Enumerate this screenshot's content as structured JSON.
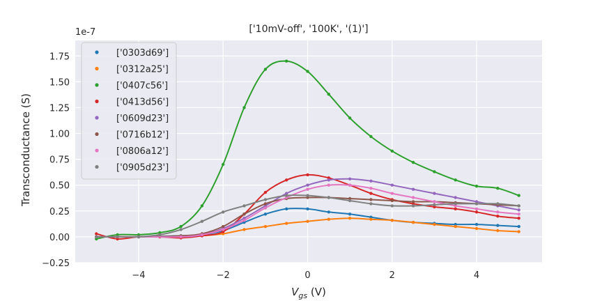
{
  "chart_data": {
    "type": "scatter",
    "title": "['10mV-off', '100K', '(1)']",
    "xlabel_main": "V",
    "xlabel_sub": "gs",
    "xlabel_unit": "(V)",
    "ylabel": "Transconductance (S)",
    "y_scale_label": "1e-7",
    "xlim": [
      -5.5,
      5.55
    ],
    "ylim": [
      -0.25,
      1.9
    ],
    "x_ticks": [
      -4,
      -2,
      0,
      2,
      4
    ],
    "x_tick_labels": [
      "−4",
      "−2",
      "0",
      "2",
      "4"
    ],
    "y_ticks": [
      -0.25,
      0.0,
      0.25,
      0.5,
      0.75,
      1.0,
      1.25,
      1.5,
      1.75
    ],
    "y_tick_labels": [
      "−0.25",
      "0.00",
      "0.25",
      "0.50",
      "0.75",
      "1.00",
      "1.25",
      "1.50",
      "1.75"
    ],
    "grid": true,
    "legend_position": "top-left",
    "series": [
      {
        "name": "['0303d69']",
        "color": "#1f77b4",
        "x": [
          -5.0,
          -4.0,
          -3.0,
          -2.5,
          -2.0,
          -1.5,
          -1.0,
          -0.5,
          0.0,
          0.5,
          1.0,
          1.5,
          2.0,
          2.5,
          3.0,
          3.5,
          4.0,
          4.5,
          5.0
        ],
        "y": [
          0.0,
          0.0,
          0.01,
          0.02,
          0.06,
          0.14,
          0.22,
          0.27,
          0.27,
          0.24,
          0.22,
          0.19,
          0.16,
          0.14,
          0.13,
          0.12,
          0.12,
          0.11,
          0.1
        ]
      },
      {
        "name": "['0312a25']",
        "color": "#ff7f0e",
        "x": [
          -5.0,
          -4.0,
          -3.0,
          -2.5,
          -2.0,
          -1.5,
          -1.0,
          -0.5,
          0.0,
          0.5,
          1.0,
          1.5,
          2.0,
          2.5,
          3.0,
          3.5,
          4.0,
          4.5,
          5.0
        ],
        "y": [
          0.0,
          0.0,
          0.0,
          0.01,
          0.03,
          0.07,
          0.1,
          0.13,
          0.15,
          0.17,
          0.18,
          0.17,
          0.16,
          0.14,
          0.12,
          0.1,
          0.08,
          0.06,
          0.05
        ]
      },
      {
        "name": "['0407c56']",
        "color": "#2ca02c",
        "x": [
          -5.0,
          -4.5,
          -4.0,
          -3.5,
          -3.0,
          -2.5,
          -2.0,
          -1.5,
          -1.0,
          -0.5,
          0.0,
          0.5,
          1.0,
          1.5,
          2.0,
          2.5,
          3.0,
          3.5,
          4.0,
          4.5,
          5.0
        ],
        "y": [
          -0.02,
          0.02,
          0.02,
          0.04,
          0.1,
          0.3,
          0.7,
          1.25,
          1.62,
          1.7,
          1.6,
          1.38,
          1.15,
          0.97,
          0.83,
          0.72,
          0.63,
          0.55,
          0.49,
          0.47,
          0.4
        ]
      },
      {
        "name": "['0413d56']",
        "color": "#d62728",
        "x": [
          -5.0,
          -4.5,
          -4.0,
          -3.5,
          -3.0,
          -2.5,
          -2.0,
          -1.5,
          -1.0,
          -0.5,
          0.0,
          0.5,
          1.0,
          1.5,
          2.0,
          2.5,
          3.0,
          3.5,
          4.0,
          4.5,
          5.0
        ],
        "y": [
          0.03,
          -0.02,
          0.0,
          0.0,
          -0.01,
          0.01,
          0.05,
          0.22,
          0.43,
          0.55,
          0.6,
          0.57,
          0.5,
          0.42,
          0.36,
          0.32,
          0.29,
          0.27,
          0.24,
          0.2,
          0.18
        ]
      },
      {
        "name": "['0609d23']",
        "color": "#9467bd",
        "x": [
          -5.0,
          -4.0,
          -3.0,
          -2.5,
          -2.0,
          -1.5,
          -1.0,
          -0.5,
          0.0,
          0.5,
          1.0,
          1.5,
          2.0,
          2.5,
          3.0,
          3.5,
          4.0,
          4.5,
          5.0
        ],
        "y": [
          0.0,
          0.0,
          0.0,
          0.02,
          0.08,
          0.18,
          0.3,
          0.42,
          0.5,
          0.55,
          0.56,
          0.54,
          0.5,
          0.46,
          0.42,
          0.38,
          0.34,
          0.3,
          0.26
        ]
      },
      {
        "name": "['0716b12']",
        "color": "#8c564b",
        "x": [
          -5.0,
          -4.0,
          -3.0,
          -2.5,
          -2.0,
          -1.5,
          -1.0,
          -0.5,
          0.0,
          0.5,
          1.0,
          1.5,
          2.0,
          2.5,
          3.0,
          3.5,
          4.0,
          4.5,
          5.0
        ],
        "y": [
          0.0,
          0.0,
          0.01,
          0.03,
          0.1,
          0.22,
          0.32,
          0.37,
          0.38,
          0.38,
          0.37,
          0.36,
          0.35,
          0.34,
          0.34,
          0.33,
          0.32,
          0.31,
          0.3
        ]
      },
      {
        "name": "['0806a12']",
        "color": "#e377c2",
        "x": [
          -5.0,
          -4.0,
          -3.0,
          -2.5,
          -2.0,
          -1.5,
          -1.0,
          -0.5,
          0.0,
          0.5,
          1.0,
          1.5,
          2.0,
          2.5,
          3.0,
          3.5,
          4.0,
          4.5,
          5.0
        ],
        "y": [
          0.0,
          0.0,
          0.0,
          0.02,
          0.07,
          0.16,
          0.28,
          0.38,
          0.46,
          0.5,
          0.5,
          0.47,
          0.42,
          0.38,
          0.34,
          0.3,
          0.27,
          0.24,
          0.22
        ]
      },
      {
        "name": "['0905d23']",
        "color": "#7f7f7f",
        "x": [
          -5.0,
          -4.5,
          -4.0,
          -3.5,
          -3.0,
          -2.5,
          -2.0,
          -1.5,
          -1.0,
          -0.5,
          0.0,
          0.5,
          1.0,
          1.5,
          2.0,
          2.5,
          3.0,
          3.5,
          4.0,
          4.5,
          5.0
        ],
        "y": [
          0.0,
          0.0,
          0.0,
          0.02,
          0.07,
          0.15,
          0.24,
          0.3,
          0.36,
          0.4,
          0.4,
          0.38,
          0.35,
          0.32,
          0.3,
          0.3,
          0.31,
          0.32,
          0.32,
          0.32,
          0.3
        ]
      }
    ]
  }
}
